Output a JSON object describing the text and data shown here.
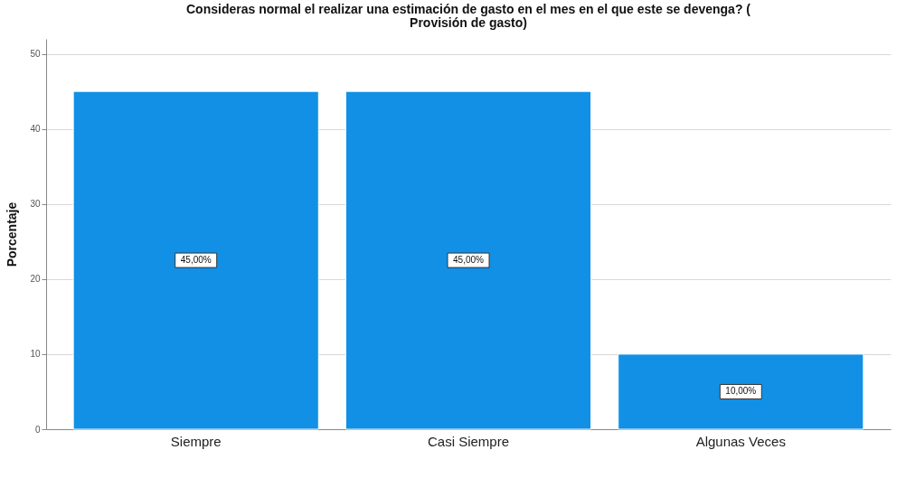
{
  "chart_data": {
    "type": "bar",
    "title": "Consideras normal el realizar una estimación de gasto en el mes en el que este se devenga? ( Provisión de gasto)",
    "ylabel": "Porcentaje",
    "categories": [
      "Siempre",
      "Casi Siempre",
      "Algunas Veces"
    ],
    "values": [
      45,
      45,
      10
    ],
    "value_labels": [
      "45,00%",
      "45,00%",
      "10,00%"
    ],
    "color": "#1190e6",
    "ylim": [
      0,
      52
    ],
    "yticks": [
      0,
      10,
      20,
      30,
      40,
      50
    ],
    "grid": "y"
  }
}
